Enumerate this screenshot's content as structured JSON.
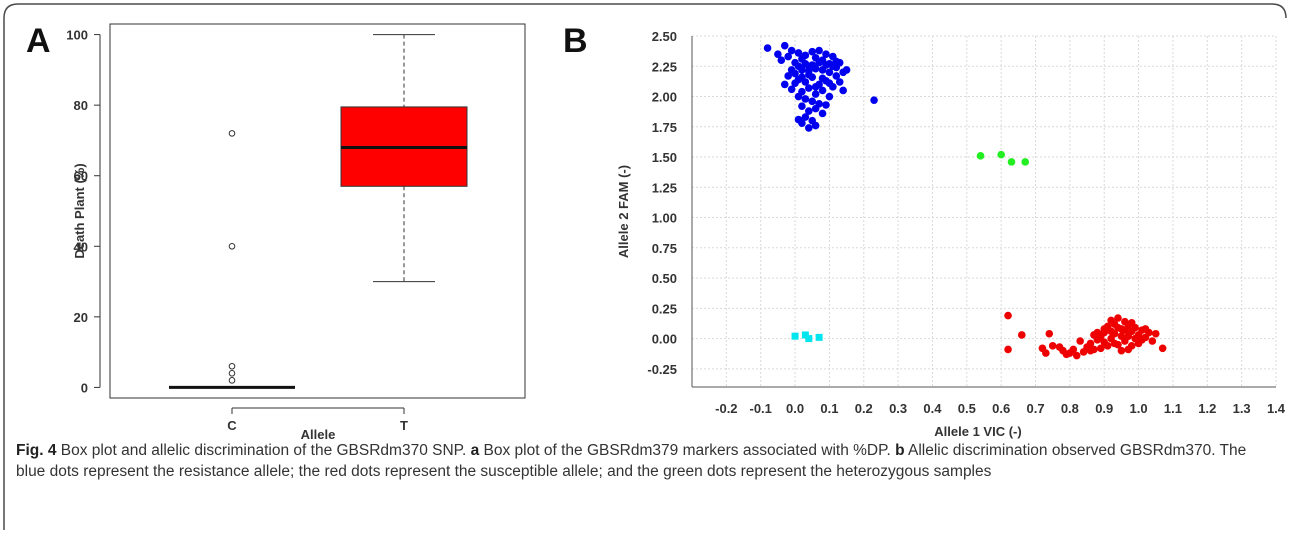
{
  "figure": {
    "panel_a_label": "A",
    "panel_b_label": "B"
  },
  "caption": {
    "fig_label": "Fig. 4",
    "parts": [
      {
        "text": " Box plot and allelic discrimination of the GBSRdm370 SNP. ",
        "bold": false
      },
      {
        "text": "a",
        "bold": true
      },
      {
        "text": " Box plot of the GBSRdm379 markers associated with %DP. ",
        "bold": false
      },
      {
        "text": "b",
        "bold": true
      },
      {
        "text": " Allelic discrimination observed GBSRdm370. The blue dots represent the resistance allele; the red dots represent the susceptible allele; and the green dots represent the heterozygous samples",
        "bold": false
      }
    ]
  },
  "colors": {
    "box_fill": "#ff0000",
    "resistance": "#0000ee",
    "susceptible": "#ee0000",
    "heterozygous": "#22ee22",
    "no_call": "#00e5ee",
    "grid": "#d9d9d9",
    "frame": "#333333"
  },
  "chart_data": [
    {
      "type": "box",
      "xlabel": "Allele",
      "ylabel": "Death Plant (%)",
      "ylim": [
        -3,
        103
      ],
      "yticks": [
        0,
        20,
        40,
        60,
        80,
        100
      ],
      "categories": [
        "C",
        "T"
      ],
      "boxes": [
        {
          "category": "C",
          "min": 0,
          "q1": 0,
          "median": 0,
          "q3": 0,
          "max": 0,
          "outliers": [
            2,
            4,
            6,
            40,
            72
          ]
        },
        {
          "category": "T",
          "min": 30,
          "q1": 57,
          "median": 68,
          "q3": 79.5,
          "max": 100,
          "outliers": []
        }
      ]
    },
    {
      "type": "scatter",
      "xlabel": "Allele 1 VIC (-)",
      "ylabel": "Allele 2 FAM (-)",
      "xlim": [
        -0.3,
        1.4
      ],
      "ylim": [
        -0.4,
        2.5
      ],
      "xticks": [
        -0.2,
        -0.1,
        0.0,
        0.1,
        0.2,
        0.3,
        0.4,
        0.5,
        0.6,
        0.7,
        0.8,
        0.9,
        1.0,
        1.1,
        1.2,
        1.3,
        1.4
      ],
      "xtick_labels": [
        "-0.2",
        "-0.1",
        "0.0",
        "0.1",
        "0.2",
        "0.3",
        "0.4",
        "0.5",
        "0.6",
        "0.7",
        "0.8",
        "0.9",
        "1.0",
        "1.1",
        "1.2",
        "1.3",
        "1.4"
      ],
      "yticks": [
        -0.25,
        0,
        0.25,
        0.5,
        0.75,
        1.0,
        1.25,
        1.5,
        1.75,
        2.0,
        2.25,
        2.5
      ],
      "ytick_labels": [
        "-0.25",
        "0.00",
        "0.25",
        "0.50",
        "0.75",
        "1.00",
        "1.25",
        "1.50",
        "1.75",
        "2.00",
        "2.25",
        "2.50"
      ],
      "grid": true,
      "series": [
        {
          "group": "resistance",
          "marker": "circle",
          "points": [
            [
              -0.08,
              2.4
            ],
            [
              -0.05,
              2.35
            ],
            [
              -0.04,
              2.3
            ],
            [
              -0.03,
              2.42
            ],
            [
              -0.02,
              2.33
            ],
            [
              -0.01,
              2.38
            ],
            [
              0.0,
              2.28
            ],
            [
              0.01,
              2.36
            ],
            [
              0.02,
              2.31
            ],
            [
              0.03,
              2.34
            ],
            [
              0.04,
              2.25
            ],
            [
              0.05,
              2.37
            ],
            [
              0.06,
              2.32
            ],
            [
              0.07,
              2.38
            ],
            [
              0.08,
              2.3
            ],
            [
              0.09,
              2.35
            ],
            [
              0.1,
              2.27
            ],
            [
              0.11,
              2.33
            ],
            [
              0.12,
              2.24
            ],
            [
              0.13,
              2.28
            ],
            [
              0.14,
              2.2
            ],
            [
              0.15,
              2.22
            ],
            [
              0.02,
              2.22
            ],
            [
              0.04,
              2.18
            ],
            [
              0.06,
              2.23
            ],
            [
              0.08,
              2.15
            ],
            [
              0.1,
              2.2
            ],
            [
              0.12,
              2.17
            ],
            [
              0.01,
              2.14
            ],
            [
              0.03,
              2.12
            ],
            [
              0.05,
              2.16
            ],
            [
              0.07,
              2.1
            ],
            [
              0.09,
              2.13
            ],
            [
              0.11,
              2.08
            ],
            [
              0.0,
              2.19
            ],
            [
              -0.02,
              2.17
            ],
            [
              -0.03,
              2.1
            ],
            [
              -0.01,
              2.06
            ],
            [
              0.02,
              2.04
            ],
            [
              0.04,
              2.07
            ],
            [
              0.06,
              2.02
            ],
            [
              0.08,
              2.05
            ],
            [
              0.1,
              2.0
            ],
            [
              0.03,
              1.98
            ],
            [
              0.05,
              1.96
            ],
            [
              0.07,
              1.94
            ],
            [
              0.01,
              2.0
            ],
            [
              0.02,
              1.92
            ],
            [
              0.04,
              1.88
            ],
            [
              0.06,
              1.9
            ],
            [
              0.08,
              1.86
            ],
            [
              0.09,
              1.93
            ],
            [
              0.03,
              1.83
            ],
            [
              0.05,
              1.8
            ],
            [
              0.02,
              1.78
            ],
            [
              0.06,
              1.76
            ],
            [
              0.04,
              1.74
            ],
            [
              0.01,
              1.81
            ],
            [
              0.11,
              2.25
            ],
            [
              0.13,
              2.12
            ],
            [
              0.14,
              2.05
            ],
            [
              0.12,
              2.29
            ],
            [
              0.09,
              2.26
            ],
            [
              0.07,
              2.28
            ],
            [
              0.05,
              2.26
            ],
            [
              0.03,
              2.27
            ],
            [
              0.01,
              2.25
            ],
            [
              -0.01,
              2.22
            ],
            [
              0.0,
              2.11
            ],
            [
              0.06,
              2.08
            ],
            [
              0.1,
              2.11
            ],
            [
              0.08,
              2.22
            ],
            [
              0.04,
              2.21
            ],
            [
              0.02,
              2.16
            ],
            [
              0.23,
              1.97
            ]
          ]
        },
        {
          "group": "heterozygous",
          "marker": "circle",
          "points": [
            [
              0.54,
              1.51
            ],
            [
              0.6,
              1.52
            ],
            [
              0.63,
              1.46
            ],
            [
              0.67,
              1.46
            ]
          ]
        },
        {
          "group": "no_call",
          "marker": "square",
          "points": [
            [
              0.0,
              0.02
            ],
            [
              0.03,
              0.03
            ],
            [
              0.04,
              0.0
            ],
            [
              0.07,
              0.01
            ]
          ]
        },
        {
          "group": "susceptible",
          "marker": "circle",
          "points": [
            [
              0.62,
              0.19
            ],
            [
              0.62,
              -0.09
            ],
            [
              0.66,
              0.03
            ],
            [
              0.72,
              -0.08
            ],
            [
              0.73,
              -0.12
            ],
            [
              0.74,
              0.04
            ],
            [
              0.75,
              -0.06
            ],
            [
              0.77,
              -0.07
            ],
            [
              0.78,
              -0.1
            ],
            [
              0.79,
              -0.13
            ],
            [
              0.8,
              -0.12
            ],
            [
              0.81,
              -0.09
            ],
            [
              0.82,
              -0.14
            ],
            [
              0.83,
              -0.02
            ],
            [
              0.84,
              -0.11
            ],
            [
              0.85,
              -0.07
            ],
            [
              0.86,
              -0.04
            ],
            [
              0.87,
              -0.09
            ],
            [
              0.88,
              -0.01
            ],
            [
              0.89,
              0.02
            ],
            [
              0.9,
              0.05
            ],
            [
              0.91,
              0.1
            ],
            [
              0.92,
              0.15
            ],
            [
              0.93,
              0.12
            ],
            [
              0.94,
              0.17
            ],
            [
              0.95,
              0.08
            ],
            [
              0.96,
              0.14
            ],
            [
              0.97,
              0.11
            ],
            [
              0.98,
              0.06
            ],
            [
              0.99,
              0.09
            ],
            [
              1.0,
              0.03
            ],
            [
              1.01,
              0.07
            ],
            [
              1.02,
              0.01
            ],
            [
              1.03,
              0.05
            ],
            [
              1.04,
              -0.02
            ],
            [
              1.05,
              0.04
            ],
            [
              1.07,
              -0.08
            ],
            [
              0.9,
              -0.03
            ],
            [
              0.92,
              0.0
            ],
            [
              0.94,
              -0.05
            ],
            [
              0.96,
              -0.02
            ],
            [
              0.98,
              -0.06
            ],
            [
              1.0,
              -0.04
            ],
            [
              0.93,
              0.04
            ],
            [
              0.95,
              0.02
            ],
            [
              0.97,
              -0.09
            ],
            [
              0.99,
              0.0
            ],
            [
              0.91,
              -0.06
            ],
            [
              0.89,
              -0.08
            ],
            [
              0.87,
              0.03
            ],
            [
              0.96,
              0.07
            ],
            [
              1.01,
              -0.01
            ],
            [
              0.94,
              0.09
            ],
            [
              0.92,
              0.06
            ],
            [
              0.98,
              0.13
            ],
            [
              0.97,
              0.02
            ],
            [
              0.95,
              -0.1
            ],
            [
              0.93,
              -0.04
            ],
            [
              1.02,
              0.08
            ],
            [
              0.9,
              0.08
            ],
            [
              0.88,
              0.05
            ],
            [
              0.86,
              -0.1
            ]
          ]
        }
      ]
    }
  ]
}
